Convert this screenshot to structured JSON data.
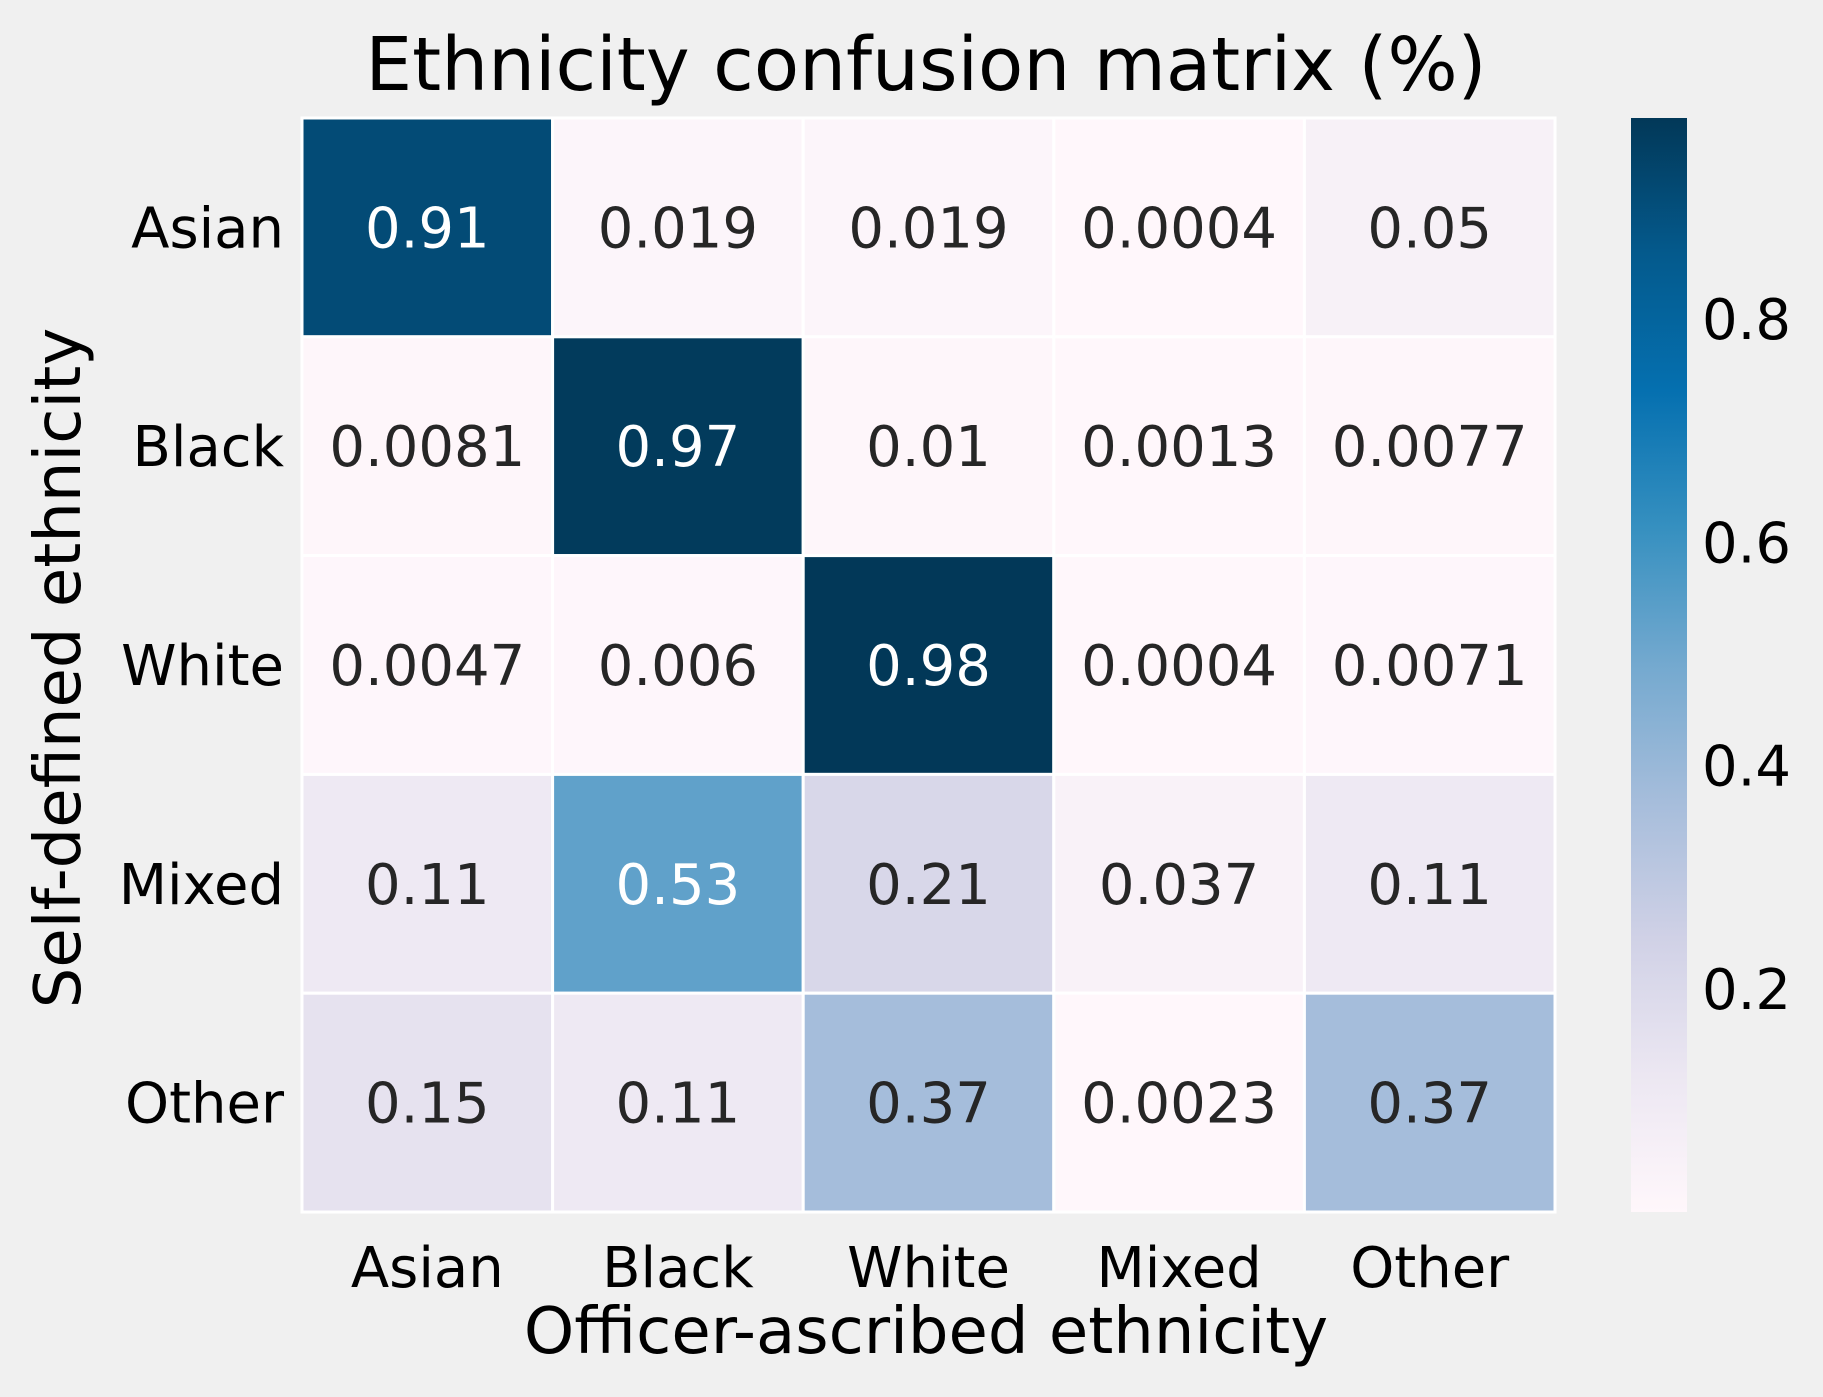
{
  "chart_data": {
    "type": "heatmap",
    "title": "Ethnicity confusion matrix (%)",
    "xlabel": "Officer-ascribed ethnicity",
    "ylabel": "Self-defined ethnicity",
    "x_categories": [
      "Asian",
      "Black",
      "White",
      "Mixed",
      "Other"
    ],
    "y_categories": [
      "Asian",
      "Black",
      "White",
      "Mixed",
      "Other"
    ],
    "values": [
      [
        0.91,
        0.019,
        0.019,
        0.0004,
        0.05
      ],
      [
        0.0081,
        0.97,
        0.01,
        0.0013,
        0.0077
      ],
      [
        0.0047,
        0.006,
        0.98,
        0.0004,
        0.0071
      ],
      [
        0.11,
        0.53,
        0.21,
        0.037,
        0.11
      ],
      [
        0.15,
        0.11,
        0.37,
        0.0023,
        0.37
      ]
    ],
    "colormap": "PuBu",
    "color_range": [
      0.0004,
      0.98
    ],
    "colorbar_ticks": [
      0.2,
      0.4,
      0.6,
      0.8
    ],
    "annotation_colors": {
      "dark": "#262626",
      "light": "#ffffff"
    },
    "background": "#f0f0f0"
  }
}
